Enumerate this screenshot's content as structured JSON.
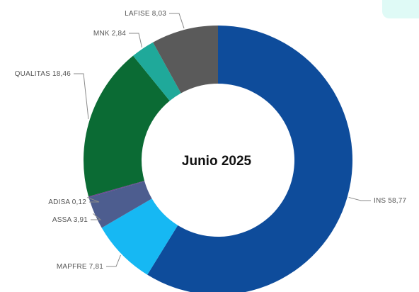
{
  "chart_data": {
    "type": "pie",
    "variant": "donut",
    "title": "Junio 2025",
    "legend": "none",
    "slices": [
      {
        "name": "INS",
        "value": 58.77,
        "label": "INS 58,77",
        "color": "#0e4c9b"
      },
      {
        "name": "MAPFRE",
        "value": 7.81,
        "label": "MAPFRE 7,81",
        "color": "#16b8f3"
      },
      {
        "name": "ASSA",
        "value": 3.91,
        "label": "ASSA 3,91",
        "color": "#4d5d8f"
      },
      {
        "name": "ADISA",
        "value": 0.12,
        "label": "ADISA 0,12",
        "color": "#6b3b8e"
      },
      {
        "name": "QUALITAS",
        "value": 18.46,
        "label": "QUALITAS 18,46",
        "color": "#0b6b34"
      },
      {
        "name": "MNK",
        "value": 2.84,
        "label": "MNK 2,84",
        "color": "#1fa99a"
      },
      {
        "name": "LAFISE",
        "value": 8.03,
        "label": "LAFISE 8,03",
        "color": "#5a5a5a"
      }
    ]
  }
}
